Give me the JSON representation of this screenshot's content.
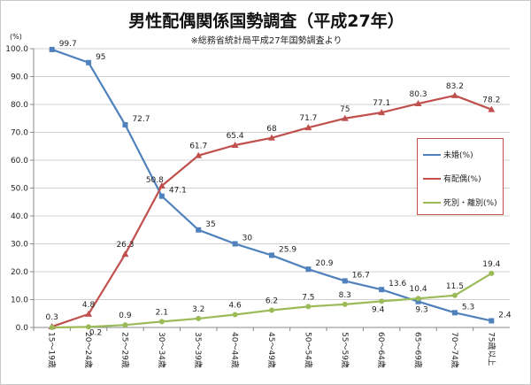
{
  "chart_data": {
    "type": "line",
    "title": "男性配偶関係国勢調査（平成27年）",
    "subtitle": "※総務省統計局平成27年国勢調査より",
    "ylabel": "(%)",
    "ylim": [
      0,
      100
    ],
    "yticks": [
      "0.0",
      "10.0",
      "20.0",
      "30.0",
      "40.0",
      "50.0",
      "60.0",
      "70.0",
      "80.0",
      "90.0",
      "100.0"
    ],
    "grid": true,
    "legend_position": "right",
    "categories": [
      "15～19歳",
      "20～24歳",
      "25～29歳",
      "30～34歳",
      "35～39歳",
      "40～44歳",
      "45～49歳",
      "50～54歳",
      "55～59歳",
      "60～64歳",
      "65～69歳",
      "70～74歳",
      "75歳以上"
    ],
    "series": [
      {
        "name": "未婚(%)",
        "color": "#4f81bd",
        "marker": "square",
        "values": [
          99.7,
          95,
          72.7,
          47.1,
          35,
          30,
          25.9,
          20.9,
          16.7,
          13.6,
          9.3,
          5.3,
          2.4
        ]
      },
      {
        "name": "有配偶(%)",
        "color": "#c0504d",
        "marker": "triangle",
        "values": [
          0.3,
          4.8,
          26.3,
          50.8,
          61.7,
          65.4,
          68,
          71.7,
          75,
          77.1,
          80.3,
          83.2,
          78.2
        ]
      },
      {
        "name": "死別・離別(%)",
        "color": "#9bbb59",
        "marker": "circle",
        "values": [
          0,
          0.2,
          0.9,
          2.1,
          3.2,
          4.6,
          6.2,
          7.5,
          8.3,
          9.4,
          10.4,
          11.5,
          19.4
        ]
      }
    ]
  }
}
